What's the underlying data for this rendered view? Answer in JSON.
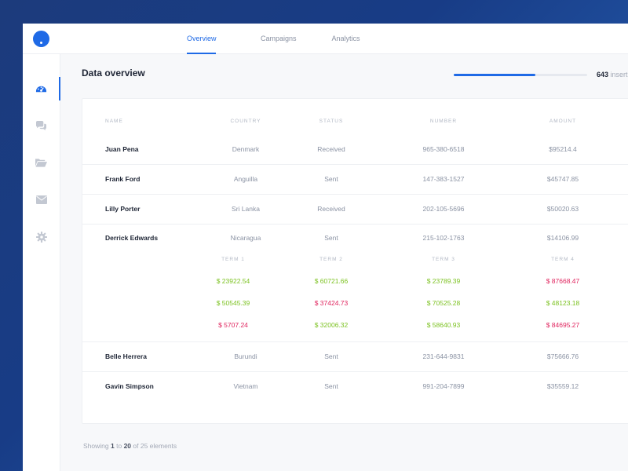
{
  "nav": {
    "tabs": [
      {
        "label": "Overview",
        "active": true
      },
      {
        "label": "Campaigns",
        "active": false
      },
      {
        "label": "Analytics",
        "active": false
      }
    ]
  },
  "sidebar": {
    "items": [
      {
        "icon": "dashboard-icon",
        "active": true
      },
      {
        "icon": "chat-icon",
        "active": false
      },
      {
        "icon": "folder-icon",
        "active": false
      },
      {
        "icon": "mail-icon",
        "active": false
      },
      {
        "icon": "gear-icon",
        "active": false
      }
    ]
  },
  "page": {
    "title": "Data overview",
    "progress_fraction": 0.61,
    "inserted_count": "643",
    "inserted_label": "inserti"
  },
  "table": {
    "headers": {
      "name": "NAME",
      "country": "COUNTRY",
      "status": "STATUS",
      "number": "NUMBER",
      "amount": "AMOUNT"
    },
    "rows": [
      {
        "name": "Juan Pena",
        "country": "Denmark",
        "status": "Received",
        "number": "965-380-6518",
        "amount": "$95214.4"
      },
      {
        "name": "Frank Ford",
        "country": "Anguilla",
        "status": "Sent",
        "number": "147-383-1527",
        "amount": "$45747.85"
      },
      {
        "name": "Lilly Porter",
        "country": "Sri Lanka",
        "status": "Received",
        "number": "202-105-5696",
        "amount": "$50020.63"
      },
      {
        "name": "Derrick Edwards",
        "country": "Nicaragua",
        "status": "Sent",
        "number": "215-102-1763",
        "amount": "$14106.99"
      },
      {
        "name": "Belle Herrera",
        "country": "Burundi",
        "status": "Sent",
        "number": "231-644-9831",
        "amount": "$75666.76"
      },
      {
        "name": "Gavin Simpson",
        "country": "Vietnam",
        "status": "Sent",
        "number": "991-204-7899",
        "amount": "$35559.12"
      }
    ],
    "terms": {
      "headers": [
        "TERM 1",
        "TERM 2",
        "TERM 3",
        "TERM 4"
      ],
      "rows": [
        [
          {
            "value": "$ 23922.54",
            "trend": "pos"
          },
          {
            "value": "$ 60721.66",
            "trend": "pos"
          },
          {
            "value": "$ 23789.39",
            "trend": "pos"
          },
          {
            "value": "$ 87668.47",
            "trend": "neg"
          }
        ],
        [
          {
            "value": "$ 50545.39",
            "trend": "pos"
          },
          {
            "value": "$ 37424.73",
            "trend": "neg"
          },
          {
            "value": "$ 70525.28",
            "trend": "pos"
          },
          {
            "value": "$ 48123.18",
            "trend": "pos"
          }
        ],
        [
          {
            "value": "$ 5707.24",
            "trend": "neg"
          },
          {
            "value": "$ 32006.32",
            "trend": "pos"
          },
          {
            "value": "$ 58640.93",
            "trend": "pos"
          },
          {
            "value": "$ 84695.27",
            "trend": "neg"
          }
        ]
      ]
    }
  },
  "footer": {
    "prefix": "Showing",
    "from": "1",
    "to_word": "to",
    "to": "20",
    "of_text": "of 25 elements"
  },
  "colors": {
    "accent": "#1f6ae6",
    "positive": "#7cc221",
    "negative": "#e0245e"
  }
}
